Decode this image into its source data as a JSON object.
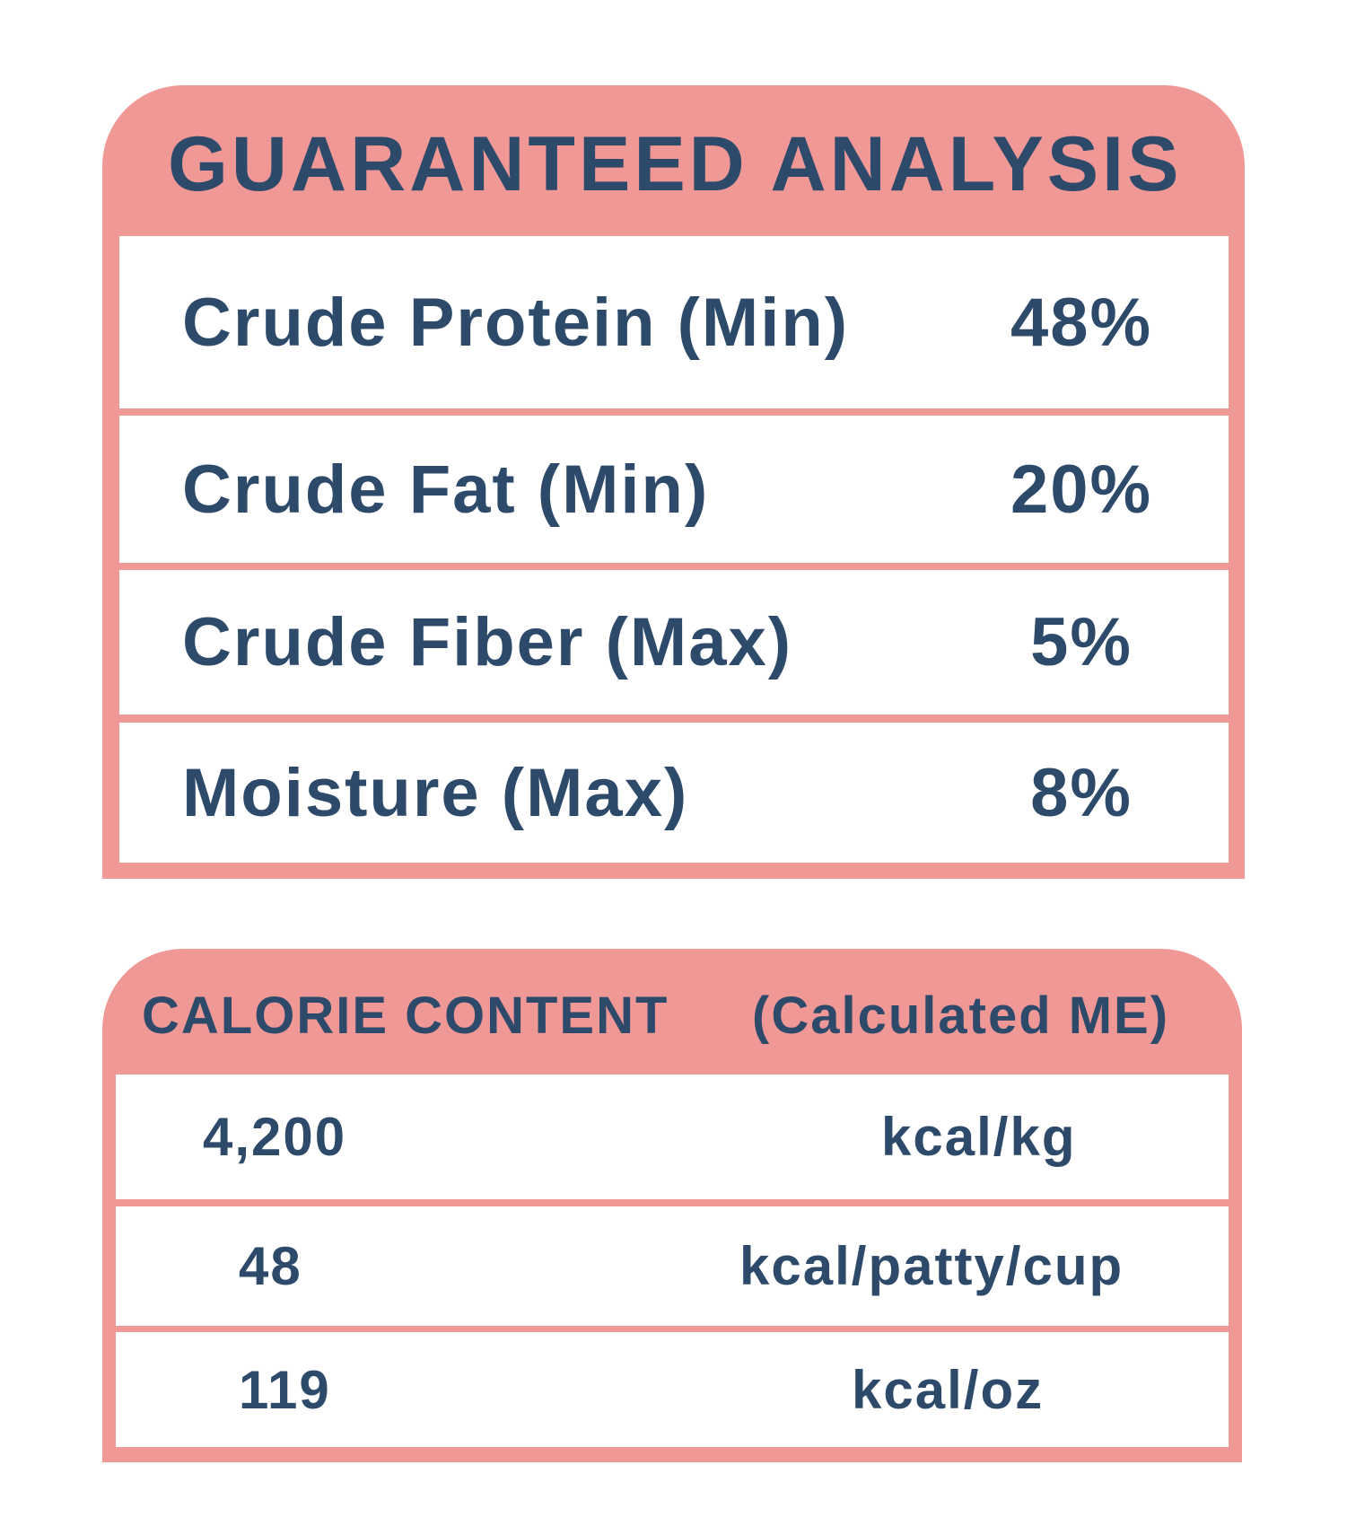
{
  "colors": {
    "accent": "#f09896",
    "text": "#2e4a6b"
  },
  "guaranteed_analysis": {
    "title": "GUARANTEED ANALYSIS",
    "rows": [
      {
        "label": "Crude Protein (Min)",
        "value": "48%"
      },
      {
        "label": "Crude Fat (Min)",
        "value": "20%"
      },
      {
        "label": "Crude Fiber (Max)",
        "value": "5%"
      },
      {
        "label": "Moisture (Max)",
        "value": "8%"
      }
    ]
  },
  "calorie_content": {
    "title": "CALORIE CONTENT",
    "subtitle": "(Calculated ME)",
    "rows": [
      {
        "value": "4,200",
        "unit": "kcal/kg"
      },
      {
        "value": "48",
        "unit": "kcal/patty/cup"
      },
      {
        "value": "119",
        "unit": "kcal/oz"
      }
    ]
  }
}
